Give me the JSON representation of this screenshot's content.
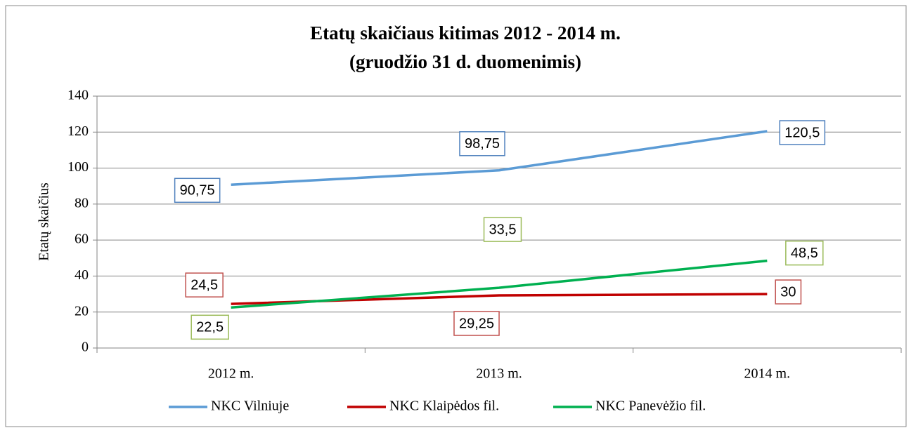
{
  "chart_data": {
    "type": "line",
    "title": "Etatų skaičiaus kitimas 2012 - 2014 m.",
    "subtitle": "(gruodžio 31 d. duomenimis)",
    "y_label": "Etatų skaičius",
    "categories": [
      "2012 m.",
      "2013 m.",
      "2014 m."
    ],
    "series": [
      {
        "name": "NKC Vilniuje",
        "color": "#5b9bd5",
        "label_border": "#4f81bd",
        "values": [
          90.75,
          98.75,
          120.5
        ],
        "value_labels": [
          "90,75",
          "98,75",
          "120,5"
        ]
      },
      {
        "name": "NKC Klaipėdos fil.",
        "color": "#c00000",
        "label_border": "#c0504d",
        "values": [
          24.5,
          29.25,
          30
        ],
        "value_labels": [
          "24,5",
          "29,25",
          "30"
        ]
      },
      {
        "name": "NKC Panevėžio fil.",
        "color": "#00b050",
        "label_border": "#9bbb59",
        "values": [
          22.5,
          33.5,
          48.5
        ],
        "value_labels": [
          "22,5",
          "33,5",
          "48,5"
        ]
      }
    ],
    "ylim": [
      0,
      140
    ],
    "yticks": [
      0,
      20,
      40,
      60,
      80,
      100,
      120,
      140
    ],
    "grid": true,
    "legend": "bottom"
  }
}
